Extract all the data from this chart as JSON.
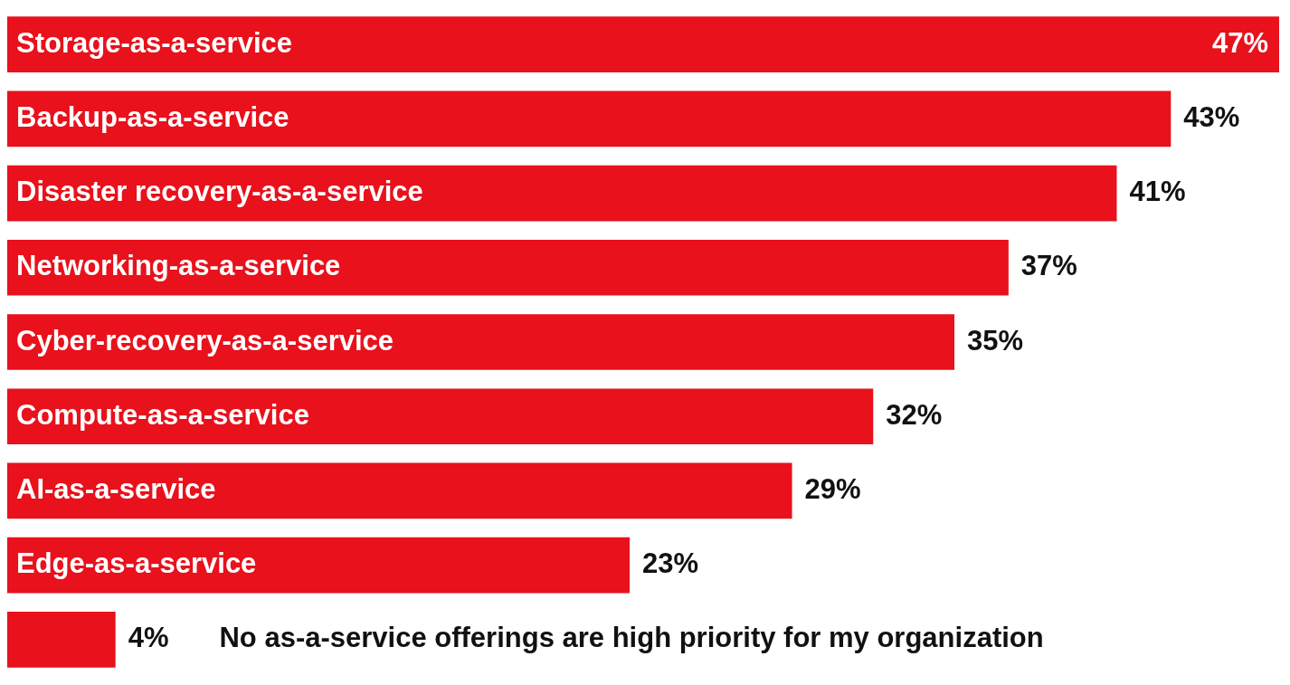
{
  "chart_data": {
    "type": "bar",
    "orientation": "horizontal",
    "categories": [
      "Storage-as-a-service",
      "Backup-as-a-service",
      "Disaster recovery-as-a-service",
      "Networking-as-a-service",
      "Cyber-recovery-as-a-service",
      "Compute-as-a-service",
      "AI-as-a-service",
      "Edge-as-a-service",
      "No as-a-service offerings are high priority for my organization"
    ],
    "values": [
      47,
      43,
      41,
      37,
      35,
      32,
      29,
      23,
      4
    ],
    "value_labels": [
      "47%",
      "43%",
      "41%",
      "37%",
      "35%",
      "32%",
      "29%",
      "23%",
      "4%"
    ],
    "color": "#e8111c",
    "tick_labels": false,
    "legend": false
  }
}
